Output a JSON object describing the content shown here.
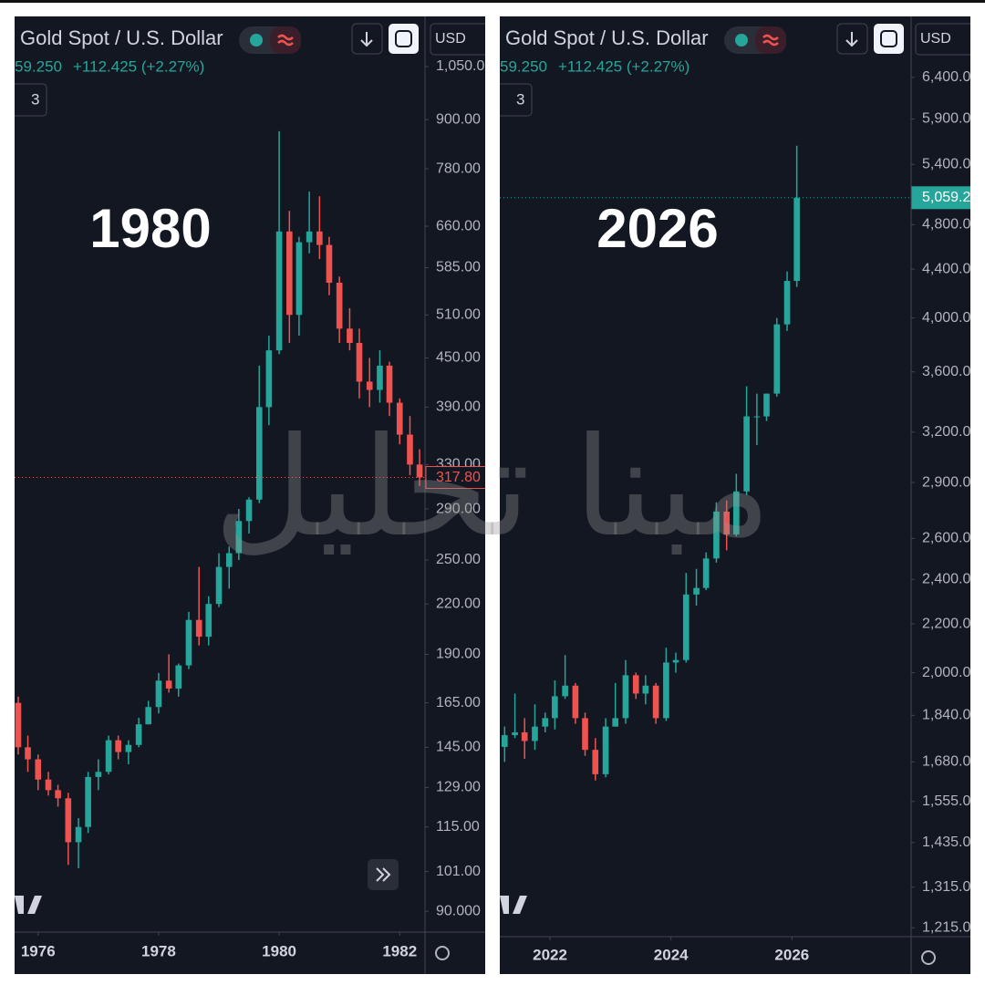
{
  "watermark": "مبنا تحليل",
  "chart_data": [
    {
      "type": "candlestick",
      "title": "Gold Spot / U.S. Dollar",
      "price": "59.250",
      "change": "+112.425 (+2.27%)",
      "indicators": "3",
      "currency": "USD",
      "annotation": "1980",
      "log_scale": true,
      "up_color": "#26a69a",
      "down_color": "#ef5350",
      "x": [
        1975.67,
        1975.83,
        1976.0,
        1976.17,
        1976.33,
        1976.5,
        1976.67,
        1976.83,
        1977.0,
        1977.17,
        1977.33,
        1977.5,
        1977.67,
        1977.83,
        1978.0,
        1978.17,
        1978.33,
        1978.5,
        1978.67,
        1978.83,
        1979.0,
        1979.17,
        1979.33,
        1979.5,
        1979.67,
        1979.83,
        1980.0,
        1980.17,
        1980.33,
        1980.5,
        1980.67,
        1980.83,
        1981.0,
        1981.17,
        1981.33,
        1981.5,
        1981.67,
        1981.83,
        1982.0,
        1982.17,
        1982.33
      ],
      "open": [
        165,
        145,
        140,
        132,
        128,
        125,
        110,
        115,
        133,
        135,
        148,
        143,
        146,
        155,
        163,
        176,
        172,
        184,
        210,
        200,
        220,
        245,
        255,
        280,
        298,
        390,
        460,
        650,
        510,
        630,
        650,
        625,
        560,
        490,
        470,
        420,
        410,
        440,
        395,
        360,
        330
      ],
      "high": [
        168,
        150,
        142,
        135,
        130,
        127,
        118,
        135,
        140,
        150,
        150,
        148,
        158,
        166,
        180,
        190,
        185,
        215,
        245,
        225,
        255,
        260,
        290,
        300,
        440,
        480,
        870,
        690,
        640,
        730,
        720,
        640,
        570,
        520,
        490,
        450,
        460,
        445,
        400,
        380,
        345
      ],
      "low": [
        142,
        135,
        128,
        126,
        122,
        103,
        102,
        113,
        128,
        134,
        140,
        138,
        145,
        155,
        160,
        170,
        168,
        182,
        195,
        195,
        218,
        230,
        250,
        270,
        295,
        370,
        455,
        470,
        480,
        610,
        600,
        540,
        470,
        460,
        400,
        390,
        395,
        380,
        350,
        320,
        310
      ],
      "close": [
        145,
        140,
        132,
        128,
        125,
        110,
        115,
        133,
        135,
        148,
        143,
        146,
        155,
        163,
        176,
        172,
        184,
        210,
        200,
        220,
        245,
        255,
        280,
        298,
        390,
        460,
        650,
        510,
        630,
        650,
        625,
        560,
        490,
        470,
        420,
        410,
        440,
        395,
        360,
        330,
        317.8
      ],
      "xlim": [
        1975.61,
        1982.42
      ],
      "xticks": [
        1976,
        1978,
        1980,
        1982
      ],
      "ylim": [
        84.7,
        1215
      ],
      "yticks": [
        {
          "value": 90,
          "label": "90.000"
        },
        {
          "value": 101,
          "label": "101.00"
        },
        {
          "value": 115,
          "label": "115.00"
        },
        {
          "value": 129,
          "label": "129.00"
        },
        {
          "value": 145,
          "label": "145.00"
        },
        {
          "value": 165,
          "label": "165.00"
        },
        {
          "value": 190,
          "label": "190.00"
        },
        {
          "value": 220,
          "label": "220.00"
        },
        {
          "value": 250,
          "label": "250.00"
        },
        {
          "value": 290,
          "label": "290.00"
        },
        {
          "value": 330,
          "label": "330.00"
        },
        {
          "value": 390,
          "label": "390.00"
        },
        {
          "value": 450,
          "label": "450.00"
        },
        {
          "value": 510,
          "label": "510.00"
        },
        {
          "value": 585,
          "label": "585.00"
        },
        {
          "value": 660,
          "label": "660.00"
        },
        {
          "value": 780,
          "label": "780.00"
        },
        {
          "value": 900,
          "label": "900.00"
        },
        {
          "value": 1050,
          "label": "1,050.00"
        }
      ],
      "last_price": {
        "value": 317.8,
        "label": "317.80"
      }
    },
    {
      "type": "candlestick",
      "title": "Gold Spot / U.S. Dollar",
      "price": "59.250",
      "change": "+112.425 (+2.27%)",
      "indicators": "3",
      "currency": "USD",
      "annotation": "2026",
      "log_scale": true,
      "up_color": "#26a69a",
      "down_color": "#ef5350",
      "x": [
        2021.25,
        2021.42,
        2021.58,
        2021.75,
        2021.92,
        2022.08,
        2022.25,
        2022.42,
        2022.58,
        2022.75,
        2022.92,
        2023.08,
        2023.25,
        2023.42,
        2023.58,
        2023.75,
        2023.92,
        2024.08,
        2024.25,
        2024.42,
        2024.58,
        2024.75,
        2024.92,
        2025.08,
        2025.25,
        2025.42,
        2025.58,
        2025.75,
        2025.92,
        2026.08
      ],
      "open": [
        1730,
        1770,
        1780,
        1750,
        1800,
        1830,
        1910,
        1950,
        1830,
        1720,
        1640,
        1800,
        1830,
        1990,
        1920,
        1950,
        1830,
        2040,
        2050,
        2330,
        2360,
        2500,
        2740,
        2620,
        2850,
        3300,
        3300,
        3450,
        3950,
        4300
      ],
      "high": [
        1800,
        1920,
        1830,
        1880,
        1850,
        1970,
        2070,
        1960,
        1850,
        1760,
        1830,
        1960,
        2050,
        2000,
        1990,
        1960,
        2100,
        2080,
        2430,
        2450,
        2530,
        2790,
        2800,
        2950,
        3500,
        3450,
        3450,
        4000,
        4380,
        5600
      ],
      "low": [
        1680,
        1760,
        1690,
        1720,
        1780,
        1790,
        1900,
        1810,
        1700,
        1620,
        1630,
        1800,
        1810,
        1900,
        1880,
        1810,
        1820,
        2000,
        2040,
        2280,
        2350,
        2480,
        2540,
        2610,
        2830,
        3120,
        3270,
        3430,
        3900,
        4250
      ],
      "close": [
        1770,
        1780,
        1750,
        1800,
        1830,
        1910,
        1950,
        1830,
        1720,
        1640,
        1800,
        1830,
        1990,
        1920,
        1950,
        1830,
        2040,
        2050,
        2330,
        2360,
        2500,
        2740,
        2620,
        2850,
        3300,
        3300,
        3450,
        3950,
        4300,
        5059.2
      ],
      "xlim": [
        2021.17,
        2027.97
      ],
      "xticks": [
        2022,
        2024,
        2026
      ],
      "ylim": [
        1194,
        7210
      ],
      "yticks": [
        {
          "value": 1215,
          "label": "1,215.00"
        },
        {
          "value": 1315,
          "label": "1,315.00"
        },
        {
          "value": 1435,
          "label": "1,435.00"
        },
        {
          "value": 1555,
          "label": "1,555.00"
        },
        {
          "value": 1680,
          "label": "1,680.00"
        },
        {
          "value": 1840,
          "label": "1,840.00"
        },
        {
          "value": 2000,
          "label": "2,000.00"
        },
        {
          "value": 2200,
          "label": "2,200.00"
        },
        {
          "value": 2400,
          "label": "2,400.00"
        },
        {
          "value": 2600,
          "label": "2,600.00"
        },
        {
          "value": 2900,
          "label": "2,900.00"
        },
        {
          "value": 3200,
          "label": "3,200.00"
        },
        {
          "value": 3600,
          "label": "3,600.00"
        },
        {
          "value": 4000,
          "label": "4,000.00"
        },
        {
          "value": 4400,
          "label": "4,400.00"
        },
        {
          "value": 4800,
          "label": "4,800.00"
        },
        {
          "value": 5400,
          "label": "5,400.00"
        },
        {
          "value": 5900,
          "label": "5,900.00"
        },
        {
          "value": 6400,
          "label": "6,400.00"
        }
      ],
      "last_price": {
        "value": 5059.2,
        "label": "5,059.2"
      }
    }
  ]
}
